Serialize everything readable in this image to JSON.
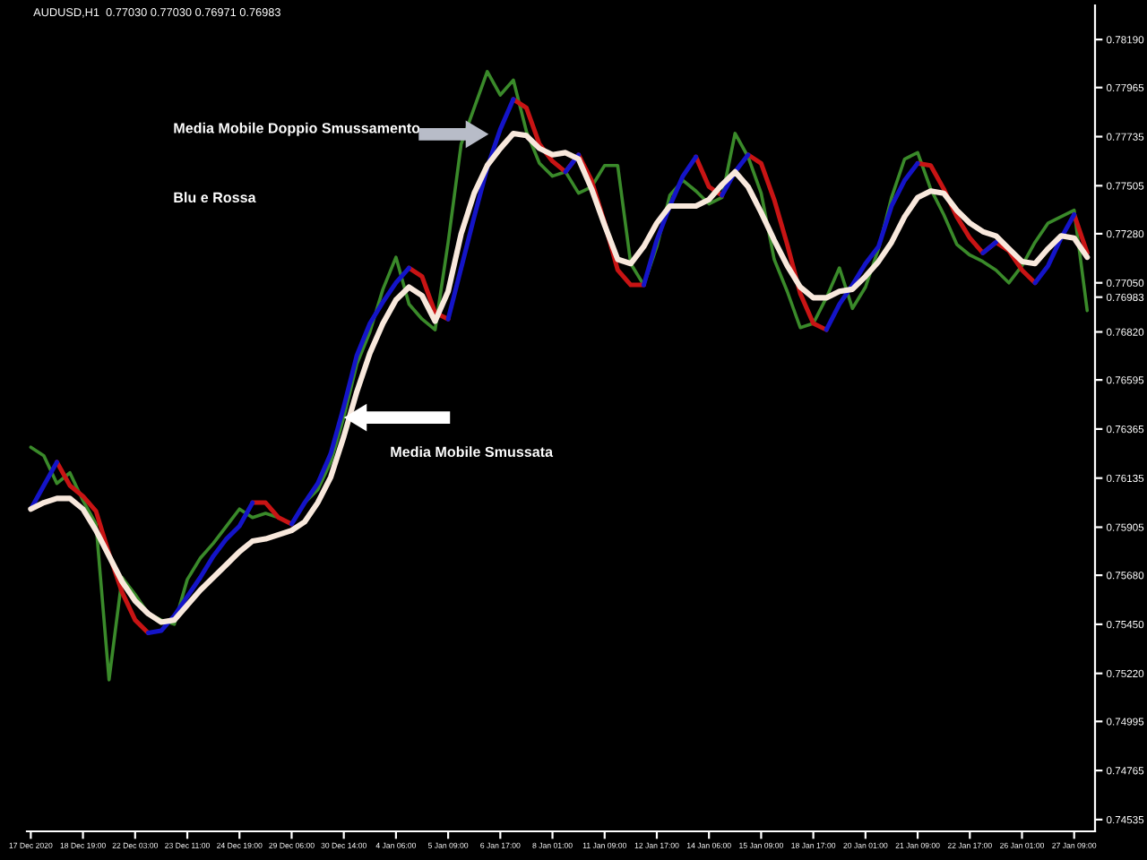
{
  "chart_data": {
    "type": "line",
    "title": "AUDUSD,H1  0.77030 0.77030 0.76971 0.76983",
    "categories": [
      "17 Dec 2020",
      null,
      null,
      null,
      "18 Dec 19:00",
      null,
      null,
      null,
      "22 Dec 03:00",
      null,
      null,
      null,
      "23 Dec 11:00",
      null,
      null,
      null,
      "24 Dec 19:00",
      null,
      null,
      null,
      "29 Dec 06:00",
      null,
      null,
      null,
      "30 Dec 14:00",
      null,
      null,
      null,
      "4 Jan 06:00",
      null,
      null,
      null,
      "5 Jan 09:00",
      null,
      null,
      null,
      "6 Jan 17:00",
      null,
      null,
      null,
      "8 Jan 01:00",
      null,
      null,
      null,
      "11 Jan 09:00",
      null,
      null,
      null,
      "12 Jan 17:00",
      null,
      null,
      null,
      "14 Jan 06:00",
      null,
      null,
      null,
      "15 Jan 09:00",
      null,
      null,
      null,
      "18 Jan 17:00",
      null,
      null,
      null,
      "20 Jan 01:00",
      null,
      null,
      null,
      "21 Jan 09:00",
      null,
      null,
      null,
      "22 Jan 17:00",
      null,
      null,
      null,
      "26 Jan 01:00",
      null,
      null,
      null,
      "27 Jan 09:00",
      null
    ],
    "ylim": [
      0.7448,
      0.7835
    ],
    "yticks": [
      {
        "value": 0.7819,
        "label": "0.78190"
      },
      {
        "value": 0.77965,
        "label": "0.77965"
      },
      {
        "value": 0.77735,
        "label": "0.77735"
      },
      {
        "value": 0.77505,
        "label": "0.77505"
      },
      {
        "value": 0.7728,
        "label": "0.77280"
      },
      {
        "value": 0.7705,
        "label": "0.77050"
      },
      {
        "value": 0.7682,
        "label": "0.76820"
      },
      {
        "value": 0.76595,
        "label": "0.76595"
      },
      {
        "value": 0.76365,
        "label": "0.76365"
      },
      {
        "value": 0.76135,
        "label": "0.76135"
      },
      {
        "value": 0.75905,
        "label": "0.75905"
      },
      {
        "value": 0.7568,
        "label": "0.75680"
      },
      {
        "value": 0.7545,
        "label": "0.75450"
      },
      {
        "value": 0.7522,
        "label": "0.75220"
      },
      {
        "value": 0.74995,
        "label": "0.74995"
      },
      {
        "value": 0.74765,
        "label": "0.74765"
      },
      {
        "value": 0.74535,
        "label": "0.74535"
      },
      {
        "value": 0.76983,
        "label": "0.76983"
      }
    ],
    "grid": false,
    "annotations": [
      "Media Mobile Doppio Smussamento",
      "Blu e Rossa",
      "Media Mobile Smussata"
    ],
    "series": [
      {
        "color": "#3a8a2a",
        "values": [
          0.7628,
          0.7624,
          0.7611,
          0.7616,
          0.7603,
          0.7592,
          0.7519,
          0.7567,
          0.7559,
          0.755,
          0.7547,
          0.7545,
          0.7566,
          0.7576,
          0.7583,
          0.7591,
          0.7599,
          0.7595,
          0.7597,
          0.7595,
          0.7592,
          0.7602,
          0.7608,
          0.7621,
          0.7642,
          0.7667,
          0.7682,
          0.7702,
          0.7717,
          0.7695,
          0.7688,
          0.7683,
          0.7724,
          0.777,
          0.7787,
          0.7804,
          0.7793,
          0.78,
          0.7776,
          0.7761,
          0.7755,
          0.7757,
          0.7747,
          0.775,
          0.776,
          0.776,
          0.7714,
          0.7704,
          0.7722,
          0.7746,
          0.7753,
          0.7748,
          0.7742,
          0.7745,
          0.7775,
          0.7764,
          0.7747,
          0.7716,
          0.7701,
          0.7684,
          0.7686,
          0.7698,
          0.7712,
          0.7693,
          0.7703,
          0.7721,
          0.7745,
          0.7763,
          0.7766,
          0.7749,
          0.7737,
          0.7723,
          0.7718,
          0.7715,
          0.7711,
          0.7705,
          0.7713,
          0.7724,
          0.7733,
          0.7736,
          0.7739,
          0.7692
        ]
      },
      {
        "color": "#1414c8",
        "values": [
          0.7599,
          0.761,
          0.7621,
          null,
          null,
          null,
          null,
          null,
          null,
          0.7541,
          0.7542,
          0.7549,
          0.7558,
          0.7567,
          0.7577,
          0.7585,
          0.7591,
          0.7602,
          null,
          null,
          0.7592,
          0.7602,
          0.7611,
          0.7625,
          0.7647,
          0.7671,
          0.7686,
          0.7696,
          0.7705,
          0.7712,
          null,
          null,
          0.7688,
          0.7712,
          0.7736,
          0.7759,
          0.7777,
          0.7791,
          null,
          null,
          null,
          0.7757,
          0.7765,
          null,
          null,
          null,
          null,
          0.7704,
          0.7725,
          0.7741,
          0.7755,
          0.7764,
          null,
          0.7746,
          0.7757,
          0.7765,
          null,
          null,
          null,
          null,
          null,
          0.7683,
          0.7695,
          0.7704,
          0.7714,
          0.7722,
          0.7741,
          0.7753,
          0.7761,
          null,
          null,
          null,
          null,
          0.7719,
          0.7724,
          null,
          null,
          0.7705,
          0.7713,
          0.7726,
          0.7737,
          null
        ]
      },
      {
        "color": "#c81414",
        "values": [
          null,
          null,
          0.7621,
          0.761,
          0.7605,
          0.7598,
          0.7578,
          0.756,
          0.7547,
          0.7541,
          null,
          null,
          null,
          null,
          null,
          null,
          null,
          0.7602,
          0.7602,
          0.7595,
          0.7592,
          null,
          null,
          null,
          null,
          null,
          null,
          null,
          null,
          0.7712,
          0.7708,
          0.7691,
          0.7688,
          null,
          null,
          null,
          null,
          0.7791,
          0.7787,
          0.777,
          0.7762,
          0.7757,
          0.7765,
          0.7753,
          0.7733,
          0.7711,
          0.7704,
          0.7704,
          null,
          null,
          null,
          0.7764,
          0.775,
          0.7746,
          null,
          0.7765,
          0.7761,
          0.7744,
          0.7723,
          0.77,
          0.7686,
          0.7683,
          null,
          null,
          null,
          null,
          null,
          null,
          0.7761,
          0.776,
          0.7749,
          0.7736,
          0.7726,
          0.7719,
          0.7724,
          0.772,
          0.7711,
          0.7705,
          null,
          null,
          0.7737,
          0.7719
        ]
      },
      {
        "color": "#f8e8dc",
        "values": [
          0.7599,
          0.7602,
          0.7604,
          0.7604,
          0.7599,
          0.7589,
          0.7577,
          0.7565,
          0.7556,
          0.755,
          0.7546,
          0.7547,
          0.7554,
          0.7561,
          0.7567,
          0.7573,
          0.7579,
          0.7584,
          0.7585,
          0.7587,
          0.7589,
          0.7593,
          0.7602,
          0.7614,
          0.7633,
          0.7654,
          0.7672,
          0.7686,
          0.7697,
          0.7703,
          0.7699,
          0.7687,
          0.7701,
          0.7728,
          0.7747,
          0.776,
          0.7768,
          0.7775,
          0.7774,
          0.7768,
          0.7765,
          0.7766,
          0.7763,
          0.7749,
          0.7732,
          0.7716,
          0.7714,
          0.7722,
          0.7733,
          0.7741,
          0.7741,
          0.7741,
          0.7744,
          0.7751,
          0.7757,
          0.775,
          0.7738,
          0.7725,
          0.7713,
          0.7703,
          0.7698,
          0.7698,
          0.7701,
          0.7702,
          0.7708,
          0.7715,
          0.7724,
          0.7736,
          0.7745,
          0.7748,
          0.7747,
          0.7739,
          0.7733,
          0.7729,
          0.7727,
          0.7721,
          0.7715,
          0.7714,
          0.7721,
          0.7727,
          0.7726,
          0.7717
        ]
      }
    ]
  }
}
